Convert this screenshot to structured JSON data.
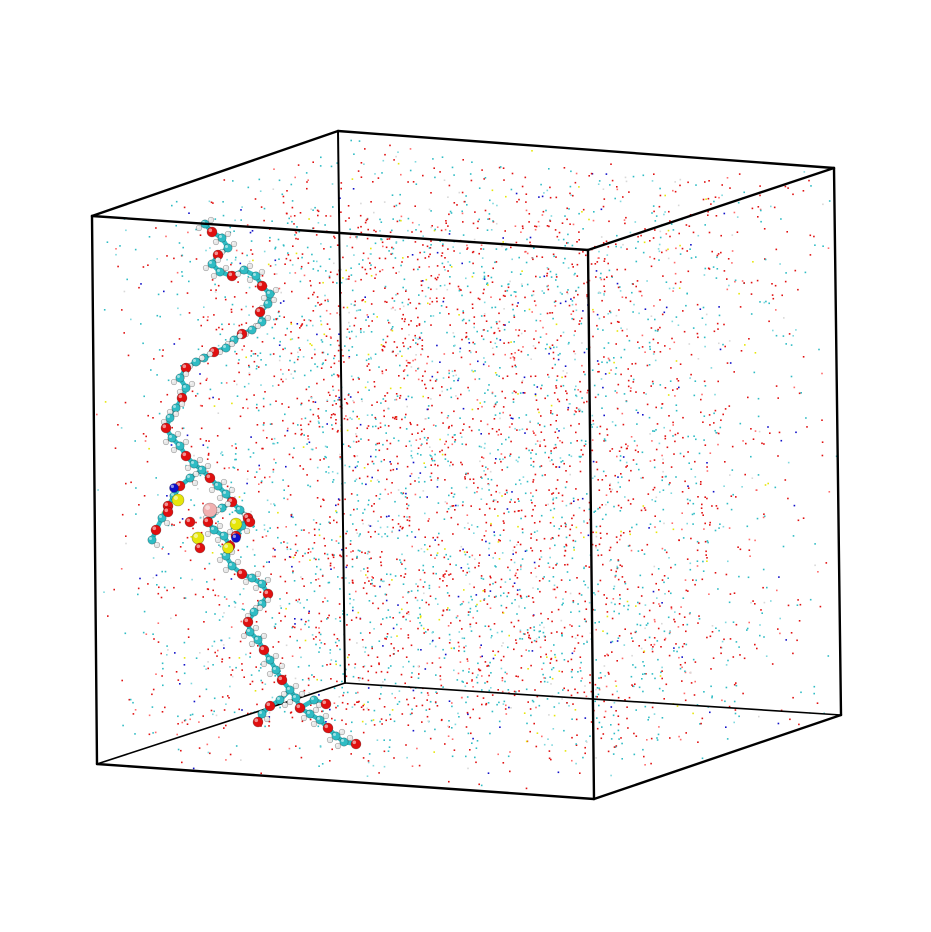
{
  "scene": {
    "background": "#ffffff",
    "box_edge_color": "#000000",
    "atom_colors": {
      "carbon": "#2fbcc4",
      "oxygen": "#e01010",
      "hydrogen": "#e8e8e8",
      "sulfur": "#e6e60a",
      "nitrogen": "#1010c8",
      "lithium": "#f0b0b0"
    },
    "solvent_dot_colors": [
      "#e01010",
      "#2fbcc4",
      "#ff6a6a",
      "#7fd8de",
      "#1010c8",
      "#e6e60a",
      "#d8d8d8"
    ],
    "polymer_label": "polymer-chain",
    "box_label": "simulation-box"
  }
}
